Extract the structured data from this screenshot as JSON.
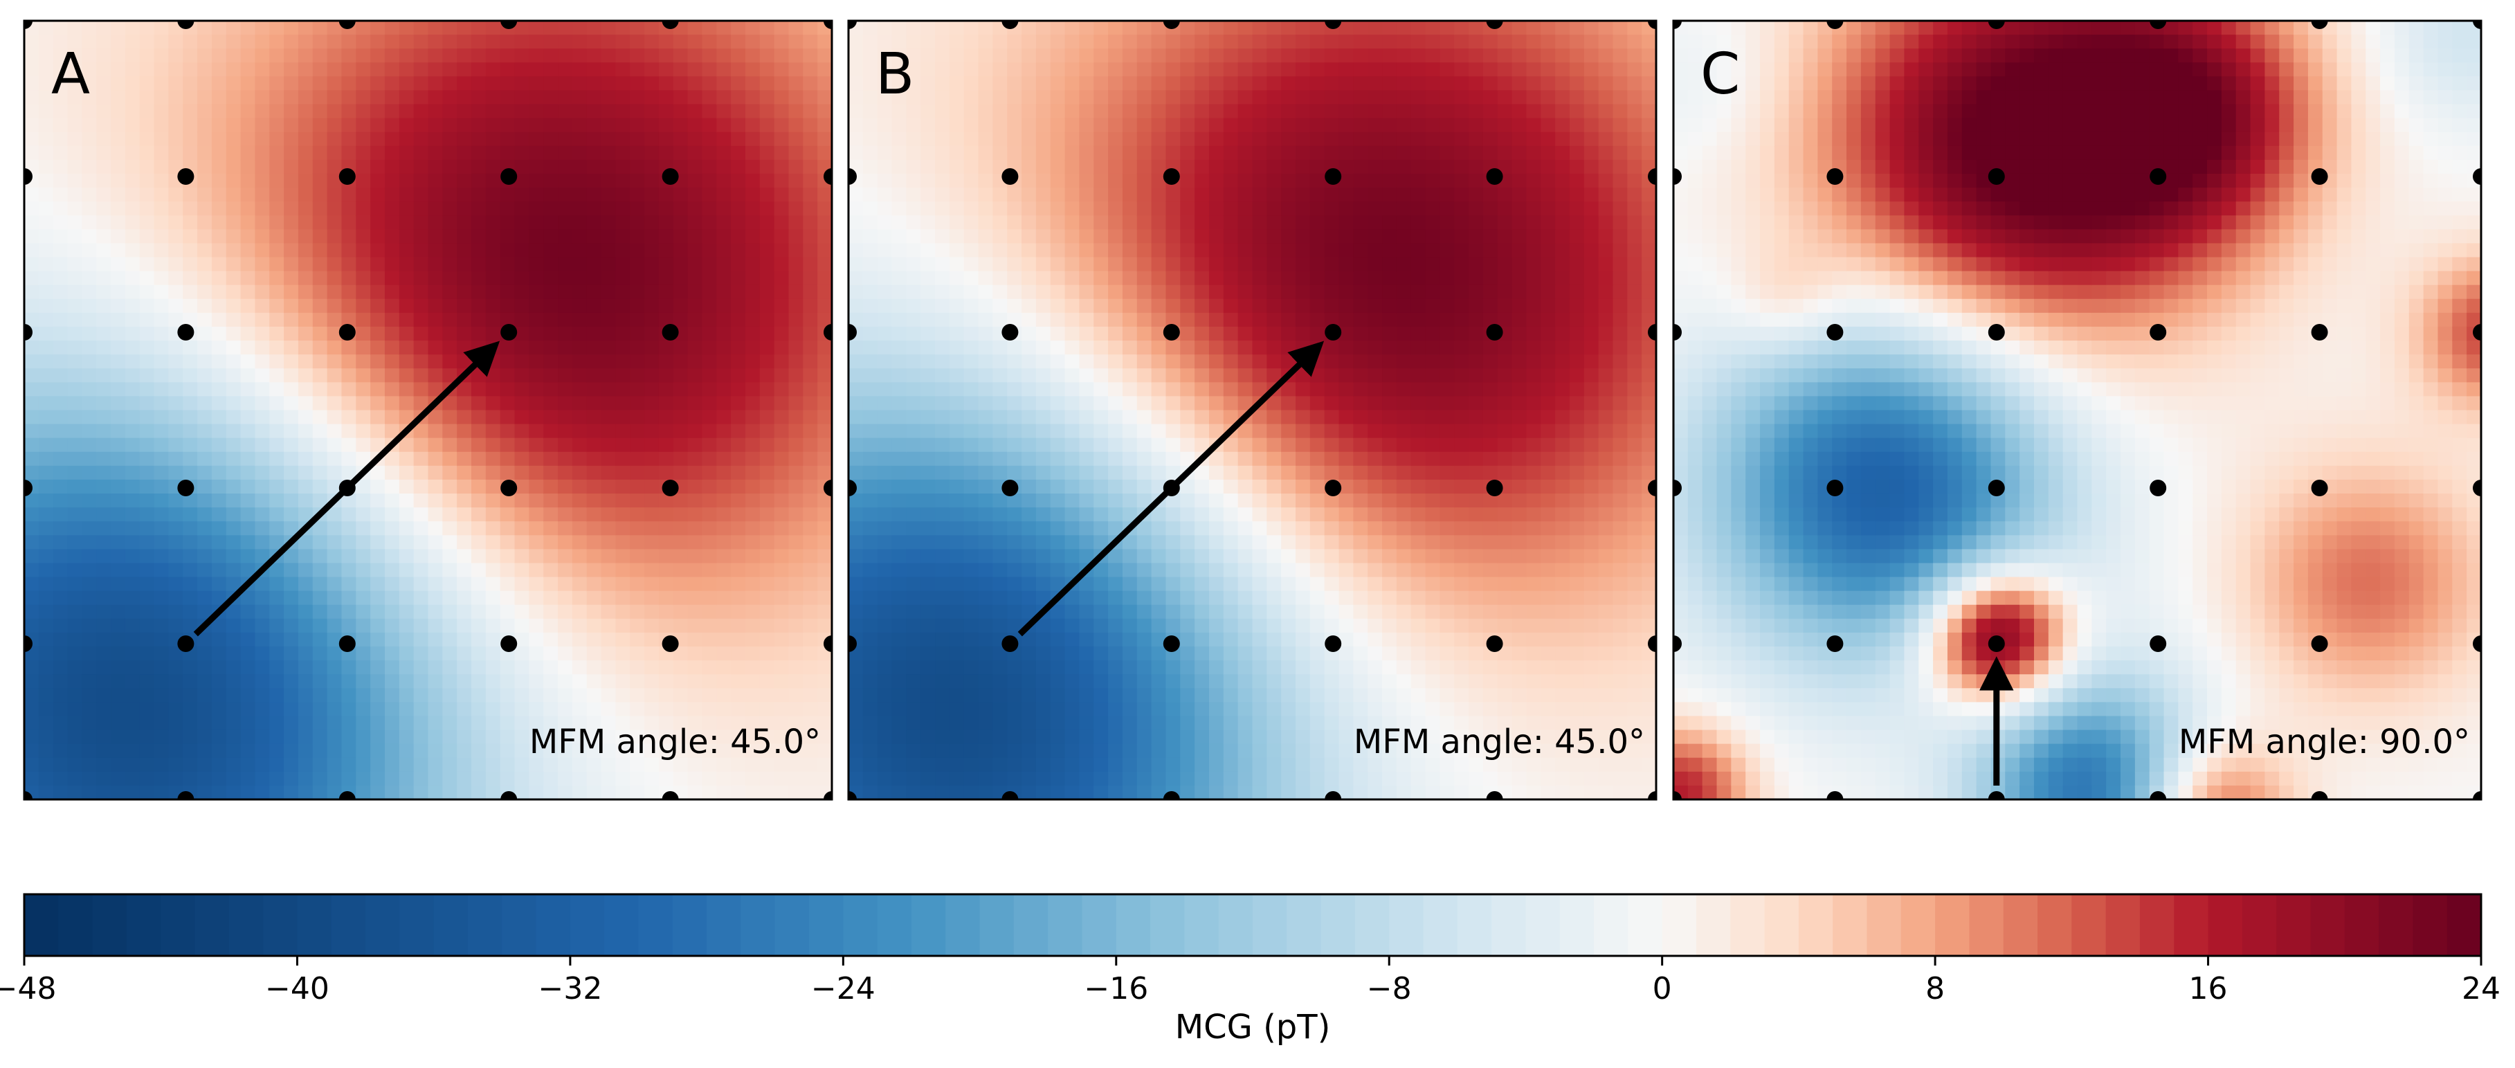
{
  "chart_data": [
    {
      "type": "heatmap",
      "panel_label": "A",
      "annotation": "MFM angle: 45.0°",
      "arrow": {
        "from": [
          1,
          1
        ],
        "to": [
          3,
          3
        ]
      },
      "sensor_grid": {
        "xs": [
          0,
          1,
          2,
          3,
          4,
          5
        ],
        "ys": [
          0,
          1,
          2,
          3,
          4,
          5
        ]
      },
      "field_blobs": [
        {
          "x": 3.25,
          "y": 3.3,
          "value": 24,
          "spread": 1.6
        },
        {
          "x": 0.7,
          "y": 0.65,
          "value": -40,
          "spread": 1.45
        }
      ]
    },
    {
      "type": "heatmap",
      "panel_label": "B",
      "annotation": "MFM angle: 45.0°",
      "arrow": {
        "from": [
          1,
          1
        ],
        "to": [
          3,
          3
        ]
      },
      "sensor_grid": {
        "xs": [
          0,
          1,
          2,
          3,
          4,
          5
        ],
        "ys": [
          0,
          1,
          2,
          3,
          4,
          5
        ]
      },
      "field_blobs": [
        {
          "x": 3.25,
          "y": 3.3,
          "value": 24,
          "spread": 1.6
        },
        {
          "x": 0.7,
          "y": 0.65,
          "value": -40,
          "spread": 1.45
        }
      ]
    },
    {
      "type": "heatmap",
      "panel_label": "C",
      "annotation": "MFM angle: 90.0°",
      "arrow": {
        "from": [
          2,
          0
        ],
        "to": [
          2,
          1
        ]
      },
      "sensor_grid": {
        "xs": [
          0,
          1,
          2,
          3,
          4,
          5
        ],
        "ys": [
          0,
          1,
          2,
          3,
          4,
          5
        ]
      },
      "field_blobs": [
        {
          "x": 2.2,
          "y": 4.2,
          "value": 26,
          "spread": 0.9
        },
        {
          "x": 3.2,
          "y": 4.4,
          "value": 14,
          "spread": 0.55
        },
        {
          "x": 1.3,
          "y": 2.0,
          "value": -32,
          "spread": 0.75
        },
        {
          "x": 2.6,
          "y": 0.05,
          "value": -28,
          "spread": 0.5
        },
        {
          "x": 2.0,
          "y": 1.05,
          "value": 30,
          "spread": 0.32
        },
        {
          "x": 4.3,
          "y": 1.4,
          "value": 11,
          "spread": 0.55
        },
        {
          "x": 3.3,
          "y": -0.1,
          "value": 18,
          "spread": 0.35
        },
        {
          "x": 0.7,
          "y": 3.2,
          "value": 5,
          "spread": 0.25
        },
        {
          "x": 5.1,
          "y": 3.0,
          "value": 14,
          "spread": 0.35
        },
        {
          "x": 0.05,
          "y": 0.05,
          "value": 16,
          "spread": 0.3
        },
        {
          "x": 4.9,
          "y": 4.9,
          "value": -6,
          "spread": 0.4
        },
        {
          "x": 0.2,
          "y": 4.6,
          "value": -3,
          "spread": 0.4
        }
      ]
    }
  ],
  "colorbar": {
    "label": "MCG (pT)",
    "vmin": -48,
    "vmax": 24,
    "ticks": [
      -48,
      -40,
      -32,
      -24,
      -16,
      -8,
      0,
      8,
      16,
      24
    ],
    "tick_labels": [
      "−48",
      "−40",
      "−32",
      "−24",
      "−16",
      "−8",
      "0",
      "8",
      "16",
      "24"
    ],
    "colormap": "RdBu_r",
    "colors": [
      "#053061",
      "#2166ac",
      "#4393c3",
      "#92c5de",
      "#d1e5f0",
      "#f7f7f7",
      "#fddbc7",
      "#f4a582",
      "#d6604d",
      "#b2182b",
      "#67001f"
    ]
  }
}
